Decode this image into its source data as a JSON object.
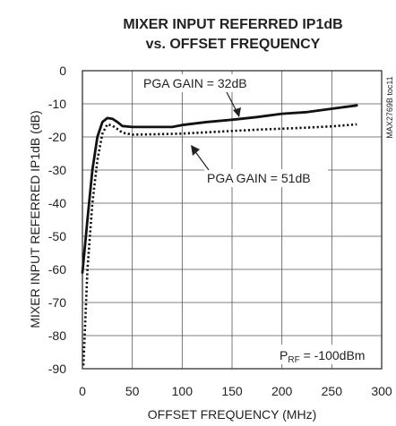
{
  "chart_data": {
    "type": "line",
    "title_line1": "MIXER INPUT REFERRED IP1dB",
    "title_line2": "vs. OFFSET FREQUENCY",
    "xlabel": "OFFSET FREQUENCY (MHz)",
    "ylabel": "MIXER INPUT REFERRED IP1dB (dB)",
    "xlim": [
      0,
      300
    ],
    "ylim": [
      -90,
      0
    ],
    "xticks": [
      0,
      50,
      100,
      150,
      200,
      250,
      300
    ],
    "yticks": [
      0,
      -10,
      -20,
      -30,
      -40,
      -50,
      -60,
      -70,
      -80,
      -90
    ],
    "grid": true,
    "series": [
      {
        "name": "PGA GAIN = 32dB",
        "style": "solid",
        "x": [
          0,
          5,
          10,
          15,
          20,
          25,
          30,
          35,
          40,
          50,
          60,
          75,
          90,
          100,
          125,
          150,
          175,
          200,
          225,
          250,
          275
        ],
        "y": [
          -61,
          -45,
          -30,
          -20,
          -15.5,
          -14.3,
          -14.5,
          -15.5,
          -16.7,
          -17,
          -17,
          -17,
          -17,
          -16.4,
          -15.5,
          -14.8,
          -14,
          -13,
          -12.5,
          -11.5,
          -10.5
        ]
      },
      {
        "name": "PGA GAIN = 51dB",
        "style": "dotted",
        "x": [
          1,
          5,
          10,
          15,
          20,
          25,
          30,
          35,
          40,
          50,
          75,
          100,
          125,
          150,
          175,
          200,
          225,
          250,
          275
        ],
        "y": [
          -89,
          -60,
          -40,
          -27,
          -19,
          -16.2,
          -16.6,
          -17.6,
          -18.7,
          -19.3,
          -19.2,
          -19,
          -18.6,
          -18.2,
          -17.8,
          -17.5,
          -17.2,
          -16.8,
          -16.2
        ]
      }
    ],
    "annotations": [
      {
        "text": "PGA GAIN = 32dB",
        "series": 0
      },
      {
        "text": "PGA GAIN = 51dB",
        "series": 1
      },
      {
        "text_main": "P",
        "text_sub": "RF",
        "text_rest": " = -100dBm"
      }
    ],
    "side_code": "MAX2769B toc11"
  }
}
